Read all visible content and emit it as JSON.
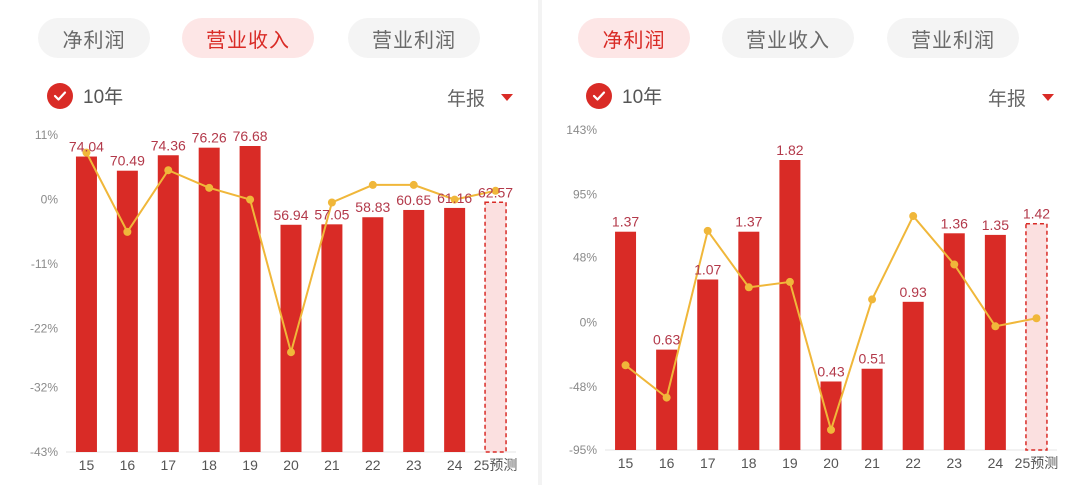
{
  "panels": [
    {
      "tabs": [
        {
          "label": "净利润",
          "active": false
        },
        {
          "label": "营业收入",
          "active": true
        },
        {
          "label": "营业利润",
          "active": false
        }
      ],
      "toggle": {
        "label": "10年",
        "checked": true
      },
      "period": {
        "label": "年报"
      },
      "chart_data": {
        "type": "bar",
        "categories": [
          "15",
          "16",
          "17",
          "18",
          "19",
          "20",
          "21",
          "22",
          "23",
          "24",
          "25预测"
        ],
        "bar_values": [
          74.04,
          70.49,
          74.36,
          76.26,
          76.68,
          56.94,
          57.05,
          58.83,
          60.65,
          61.16,
          62.57
        ],
        "bar_labels": [
          "74.04",
          "70.49",
          "74.36",
          "76.26",
          "76.68",
          "56.94",
          "57.05",
          "58.83",
          "60.65",
          "61.16",
          "62.57"
        ],
        "line_values": [
          8,
          -5.5,
          5,
          2,
          0,
          -26,
          -0.5,
          2.5,
          2.5,
          0,
          1.5
        ],
        "y_ticks": [
          "11%",
          "0%",
          "-11%",
          "-22%",
          "-32%",
          "-43%"
        ],
        "y_tick_values": [
          11,
          0,
          -11,
          -22,
          -32,
          -43
        ],
        "ylim": [
          -43,
          11
        ],
        "forecast_last": true
      }
    },
    {
      "tabs": [
        {
          "label": "净利润",
          "active": true
        },
        {
          "label": "营业收入",
          "active": false
        },
        {
          "label": "营业利润",
          "active": false
        }
      ],
      "toggle": {
        "label": "10年",
        "checked": true
      },
      "period": {
        "label": "年报"
      },
      "chart_data": {
        "type": "bar",
        "categories": [
          "15",
          "16",
          "17",
          "18",
          "19",
          "20",
          "21",
          "22",
          "23",
          "24",
          "25预测"
        ],
        "bar_values": [
          1.37,
          0.63,
          1.07,
          1.37,
          1.82,
          0.43,
          0.51,
          0.93,
          1.36,
          1.35,
          1.42
        ],
        "bar_labels": [
          "1.37",
          "0.63",
          "1.07",
          "1.37",
          "1.82",
          "0.43",
          "0.51",
          "0.93",
          "1.36",
          "1.35",
          "1.42"
        ],
        "line_values": [
          -32,
          -56,
          68,
          26,
          30,
          -80,
          17,
          79,
          43,
          -3,
          3
        ],
        "y_ticks": [
          "143%",
          "95%",
          "48%",
          "0%",
          "-48%",
          "-95%"
        ],
        "y_tick_values": [
          143,
          95,
          48,
          0,
          -48,
          -95
        ],
        "ylim": [
          -95,
          143
        ],
        "forecast_last": true
      }
    }
  ],
  "colors": {
    "bar": "#d92b26",
    "forecast_fill": "#fbe0e0",
    "forecast_border": "#d92b26",
    "line": "#f0b73a",
    "value_label": "#b3394a",
    "axis_text": "#8a8a8a"
  }
}
